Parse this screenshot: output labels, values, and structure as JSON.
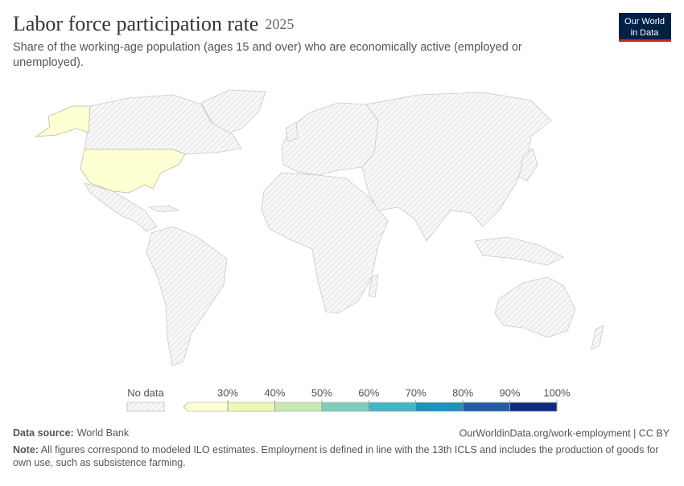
{
  "header": {
    "title": "Labor force participation rate",
    "year": "2025",
    "subtitle": "Share of the working-age population (ages 15 and over) who are economically active (employed or unemployed).",
    "logo": [
      "Our World",
      "in Data"
    ]
  },
  "legend": {
    "no_data": "No data",
    "ticks": [
      {
        "value": 30,
        "label": "30%"
      },
      {
        "value": 40,
        "label": "40%"
      },
      {
        "value": 50,
        "label": "50%"
      },
      {
        "value": 60,
        "label": "60%"
      },
      {
        "value": 70,
        "label": "70%"
      },
      {
        "value": 80,
        "label": "80%"
      },
      {
        "value": 90,
        "label": "90%"
      },
      {
        "value": 100,
        "label": "100%"
      }
    ],
    "colors": [
      "#ffffd4",
      "#edf8b1",
      "#c7e9b4",
      "#7fcdbb",
      "#41b6c4",
      "#1d91c0",
      "#225ea8",
      "#0c2c84"
    ]
  },
  "footer": {
    "source_label": "Data source:",
    "source": "World Bank",
    "url": "OurWorldinData.org/work-employment | CC BY",
    "note_label": "Note:",
    "note": "All figures correspond to modeled ILO estimates. Employment is defined in line with the 13th ICLS and includes the production of goods for own use, such as subsistence farming."
  }
}
